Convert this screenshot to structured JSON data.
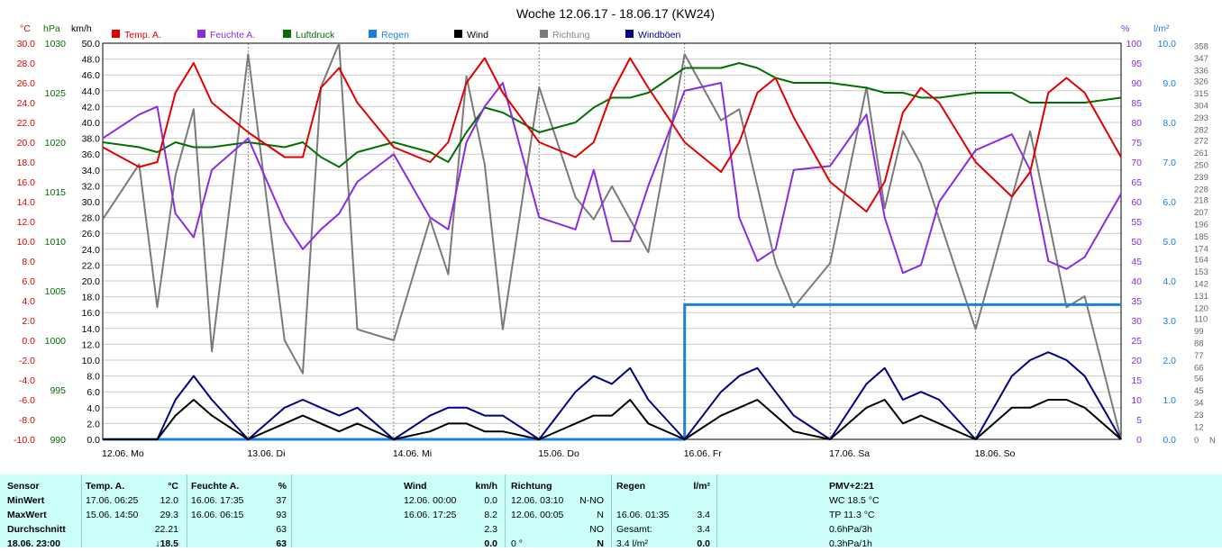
{
  "chart_data": {
    "type": "line",
    "title": "Woche 12.06.17 - 18.06.17 (KW24)",
    "units": {
      "temp": "°C",
      "pressure": "hPa",
      "wind": "km/h",
      "humidity": "%",
      "rain": "l/m²"
    },
    "legend": [
      {
        "label": "Temp. A.",
        "color": "#e00000"
      },
      {
        "label": "Feuchte A.",
        "color": "#8a2be2"
      },
      {
        "label": "Luftdruck",
        "color": "#007000"
      },
      {
        "label": "Regen",
        "color": "#1e7fe0"
      },
      {
        "label": "Wind",
        "color": "#000000"
      },
      {
        "label": "Richtung",
        "color": "#7a7a7a"
      },
      {
        "label": "Windböen",
        "color": "#000080"
      }
    ],
    "x_tick_labels": [
      "12.06. Mo",
      "13.06. Di",
      "14.06. Mi",
      "15.06. Do",
      "16.06. Fr",
      "17.06. Sa",
      "18.06. So"
    ],
    "axes": {
      "temp": {
        "min": -10,
        "max": 30,
        "step": 2
      },
      "pressure": {
        "min": 990,
        "max": 1030,
        "labels": [
          990,
          995,
          1000,
          1005,
          1010,
          1015,
          1020,
          1025,
          1030
        ]
      },
      "wind": {
        "min": 0,
        "max": 50,
        "step": 2
      },
      "humidity": {
        "min": 0,
        "max": 100,
        "step": 5
      },
      "rain": {
        "min": 0,
        "max": 10,
        "step": 1
      },
      "direction": {
        "min": 0,
        "max": 360,
        "labels": [
          0,
          12,
          23,
          34,
          45,
          56,
          66,
          77,
          88,
          99,
          110,
          120,
          131,
          142,
          153,
          164,
          174,
          185,
          196,
          207,
          218,
          228,
          239,
          250,
          261,
          272,
          282,
          293,
          304,
          315,
          326,
          336,
          347,
          358
        ]
      }
    },
    "hours": [
      0,
      6,
      9,
      12,
      15,
      18,
      24,
      30,
      33,
      36,
      39,
      42,
      48,
      54,
      57,
      60,
      63,
      66,
      72,
      78,
      81,
      84,
      87,
      90,
      96,
      102,
      105,
      108,
      111,
      114,
      120,
      126,
      129,
      132,
      135,
      138,
      144,
      150,
      153,
      156,
      159,
      162,
      168
    ],
    "temperature": [
      19.5,
      17.5,
      18.0,
      25.0,
      28.0,
      24.0,
      21.0,
      18.5,
      18.5,
      25.5,
      27.5,
      24.0,
      19.5,
      18.0,
      20.0,
      26.0,
      28.5,
      25.0,
      20.0,
      18.5,
      20.0,
      25.0,
      28.5,
      25.5,
      20.0,
      17.0,
      20.0,
      25.0,
      26.5,
      22.5,
      16.0,
      13.0,
      16.0,
      23.0,
      25.5,
      24.0,
      18.0,
      14.5,
      17.0,
      25.0,
      26.5,
      25.0,
      18.5
    ],
    "humidity": [
      76,
      82,
      84,
      57,
      51,
      68,
      76,
      55,
      48,
      53,
      57,
      65,
      72,
      56,
      53,
      75,
      84,
      90,
      56,
      53,
      68,
      50,
      50,
      64,
      88,
      90,
      56,
      45,
      48,
      68,
      69,
      82,
      56,
      42,
      44,
      60,
      73,
      77,
      68,
      45,
      43,
      46,
      62
    ],
    "pressure": [
      1020.0,
      1019.5,
      1019.0,
      1020.0,
      1019.5,
      1019.5,
      1020.0,
      1019.5,
      1020.0,
      1018.5,
      1017.5,
      1019.0,
      1020.0,
      1019.0,
      1018.0,
      1021.0,
      1023.5,
      1023.0,
      1021.0,
      1022.0,
      1023.5,
      1024.5,
      1024.5,
      1025.0,
      1027.5,
      1027.5,
      1028.0,
      1027.5,
      1026.5,
      1026.0,
      1026.0,
      1025.5,
      1025.0,
      1025.0,
      1024.5,
      1024.5,
      1025.0,
      1025.0,
      1024.0,
      1024.0,
      1024.0,
      1024.0,
      1024.5
    ],
    "rain": [
      0,
      0,
      0,
      0,
      0,
      0,
      0,
      0,
      0,
      0,
      0,
      0,
      0,
      0,
      0,
      0,
      0,
      0,
      0,
      0,
      0,
      0,
      0,
      0,
      3.4,
      3.4,
      3.4,
      3.4,
      3.4,
      3.4,
      3.4,
      3.4,
      3.4,
      3.4,
      3.4,
      3.4,
      3.4,
      3.4,
      3.4,
      3.4,
      3.4,
      3.4,
      3.4
    ],
    "wind": [
      0,
      0,
      0,
      3,
      5,
      3,
      0,
      2,
      3,
      2,
      1,
      2,
      0,
      1,
      2,
      2,
      1,
      1,
      0,
      2,
      3,
      3,
      5,
      2,
      0,
      3,
      4,
      5,
      3,
      1,
      0,
      4,
      5,
      2,
      3,
      2,
      0,
      4,
      4,
      5,
      5,
      4,
      0
    ],
    "gusts": [
      0,
      0,
      0,
      5,
      8,
      5,
      0,
      4,
      5,
      4,
      3,
      4,
      0,
      3,
      4,
      4,
      3,
      3,
      0,
      6,
      8,
      7,
      9,
      5,
      0,
      6,
      8,
      9,
      6,
      3,
      0,
      7,
      9,
      5,
      6,
      5,
      0,
      8,
      10,
      11,
      10,
      8,
      0
    ],
    "direction": [
      200,
      250,
      120,
      240,
      300,
      80,
      350,
      90,
      60,
      320,
      360,
      100,
      90,
      200,
      150,
      330,
      250,
      100,
      320,
      220,
      200,
      230,
      200,
      170,
      350,
      290,
      300,
      230,
      160,
      120,
      160,
      320,
      210,
      280,
      250,
      200,
      100,
      220,
      280,
      200,
      120,
      130,
      0
    ],
    "stats": {
      "headers": {
        "sensor": "Sensor",
        "temp": "Temp. A.",
        "temp_unit": "°C",
        "hum": "Feuchte A.",
        "hum_unit": "%",
        "wind": "Wind",
        "wind_unit": "km/h",
        "dir": "Richtung",
        "rain": "Regen",
        "rain_unit": "l/m²",
        "pmv": "PMV+2:21"
      },
      "rows": [
        {
          "label": "MinWert",
          "temp_time": "17.06.  06:25",
          "temp_val": "12.0",
          "hum_time": "16.06.  17:35",
          "hum_val": "37",
          "wind_time": "12.06.  00:00",
          "wind_val": "0.0",
          "dir_time": "12.06.  03:10",
          "dir_val": "N-NO",
          "rain_time": "",
          "rain_val": "",
          "extra": "WC 18.5 °C"
        },
        {
          "label": "MaxWert",
          "temp_time": "15.06.  14:50",
          "temp_val": "29.3",
          "hum_time": "16.06.  06:15",
          "hum_val": "93",
          "wind_time": "16.06.  17:25",
          "wind_val": "8.2",
          "dir_time": "12.06.  00:05",
          "dir_val": "N",
          "rain_time": "16.06.  01:35",
          "rain_val": "3.4",
          "extra": "TP 11.3 °C"
        },
        {
          "label": "Durchschnitt",
          "temp_time": "",
          "temp_val": "22.21",
          "hum_time": "",
          "hum_val": "63",
          "wind_time": "",
          "wind_val": "2.3",
          "dir_time": "",
          "dir_val": "NO",
          "rain_time": "Gesamt:",
          "rain_val": "3.4",
          "extra": "0.6hPa/3h"
        },
        {
          "label": "18.06. 23:00",
          "temp_time": "",
          "temp_val": "↓18.5",
          "hum_time": "",
          "hum_val": "63",
          "wind_time": "",
          "wind_val": "0.0",
          "dir_time": "0 °",
          "dir_val": "N",
          "rain_time": "3.4 l/m²",
          "rain_val": "0.0",
          "extra": "0.3hPa/1h"
        }
      ]
    }
  }
}
